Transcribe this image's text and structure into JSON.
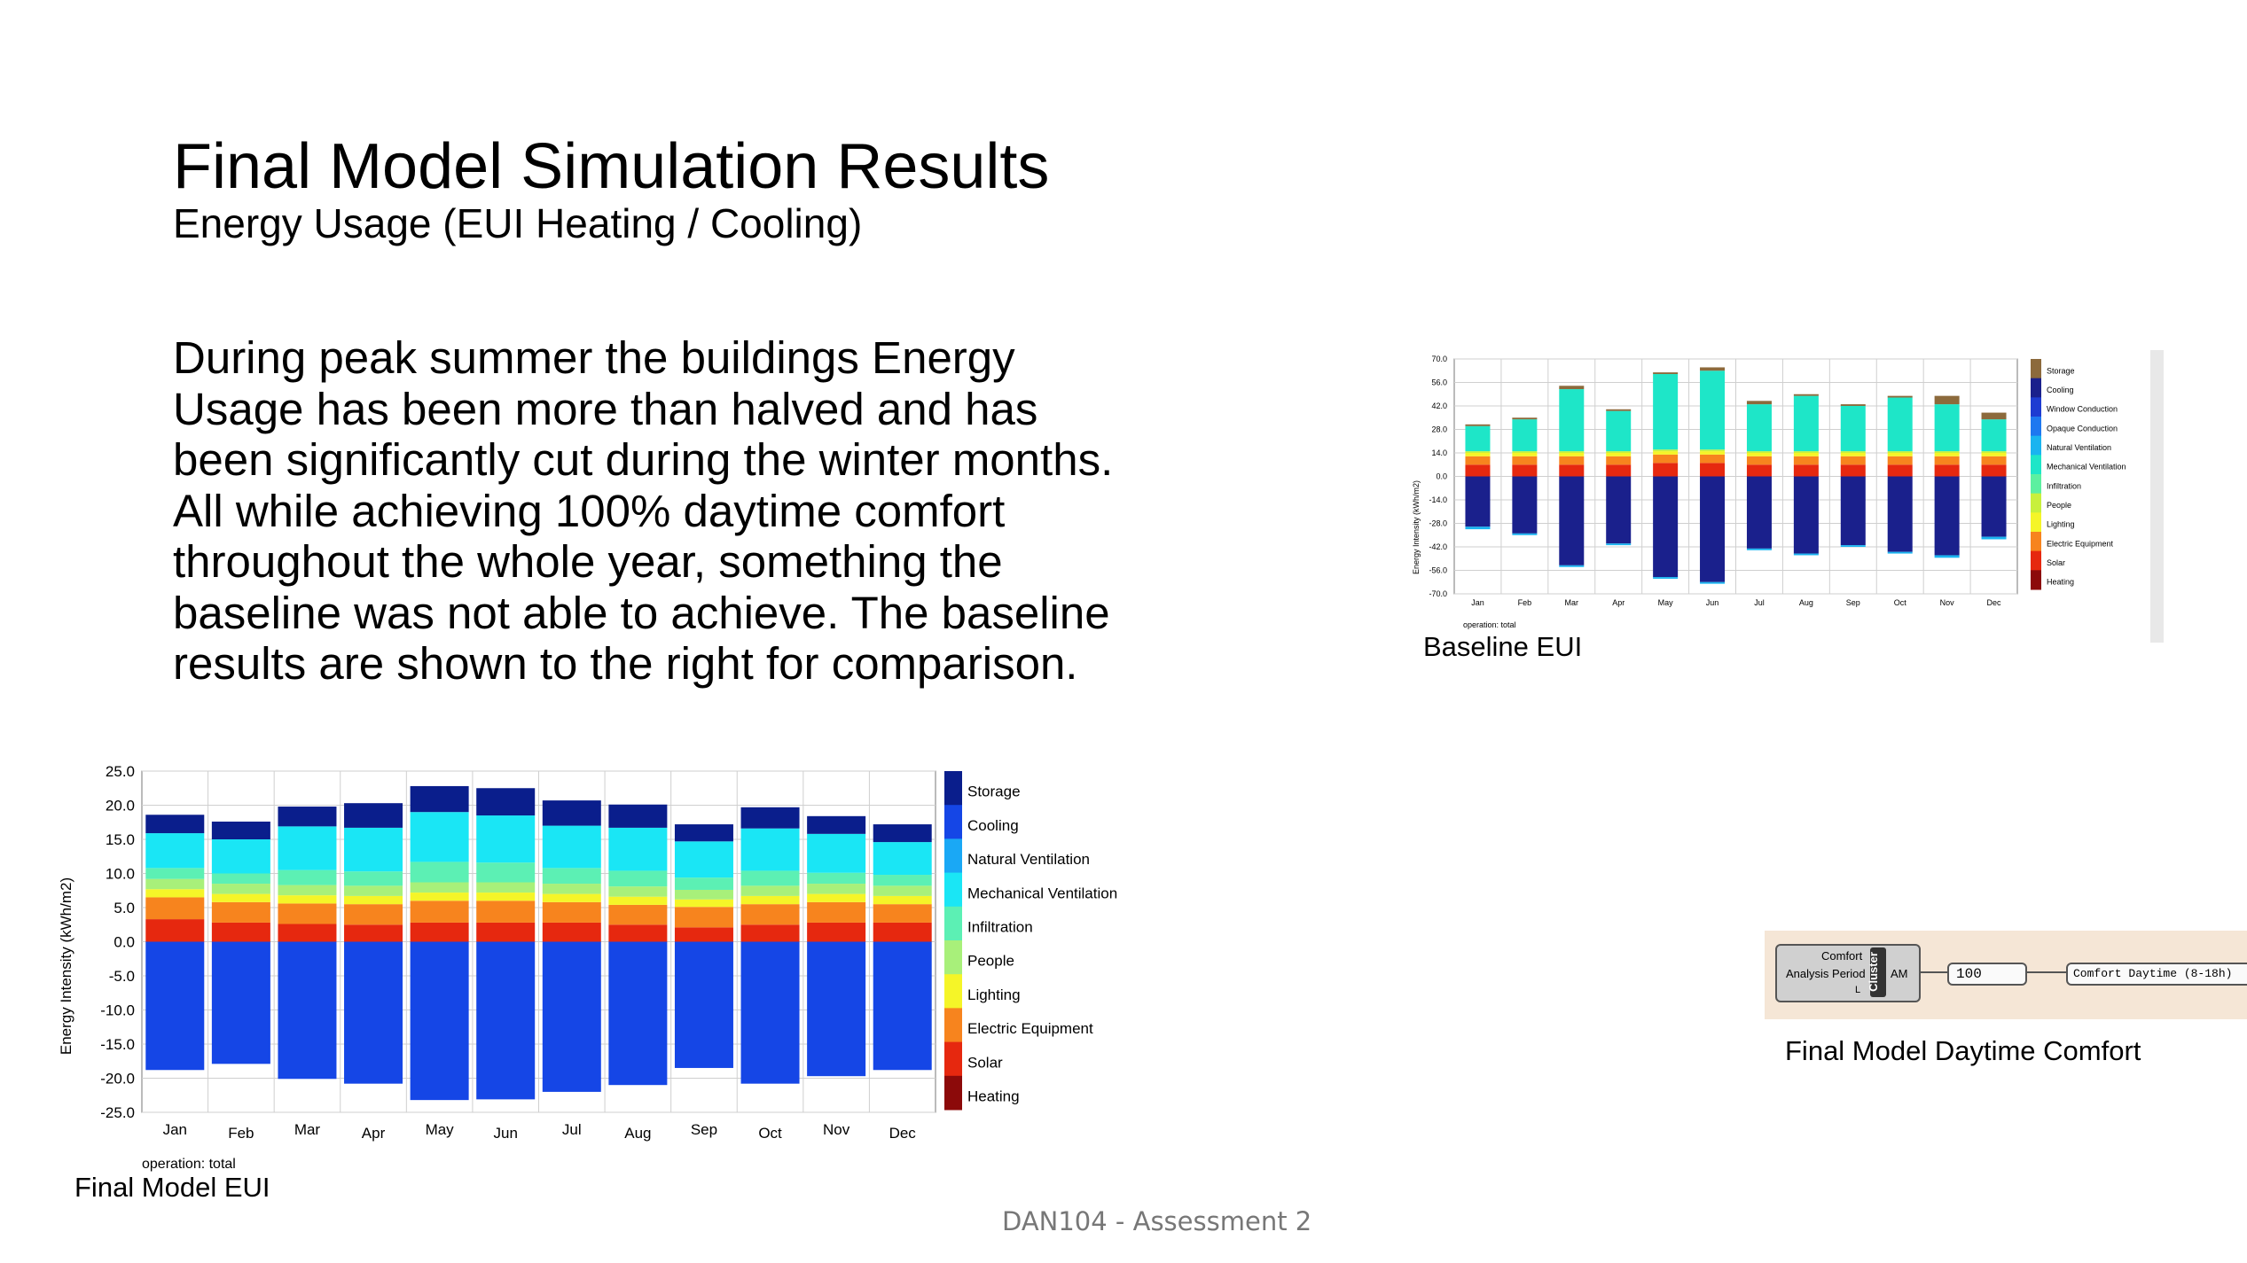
{
  "slide": {
    "title": "Final Model Simulation Results",
    "subtitle": "Energy Usage (EUI Heating / Cooling)",
    "body_lines": [
      "During peak summer the buildings Energy",
      "Usage has been more than halved and has",
      "been significantly cut during the winter months.",
      "All while achieving 100% daytime comfort",
      "throughout the whole year, something the",
      "baseline was not able to achieve. The baseline",
      "results are shown to the right for comparison."
    ],
    "baseline_label": "Baseline EUI",
    "final_label": "Final Model EUI",
    "comfort_label": "Final Model Daytime Comfort",
    "footer": "DAN104 - Assessment 2"
  },
  "grasshopper": {
    "component_title": "Comfort",
    "input_label": "Analysis Period",
    "cluster_label": "Cluster",
    "output_label": "AM",
    "small_label": "L",
    "value": "100",
    "panel_text": "Comfort Daytime (8-18h)"
  },
  "chart_data": [
    {
      "id": "final",
      "type": "bar",
      "stacked": true,
      "title": "",
      "ylabel": "Energy Intensity (kWh/m2)",
      "note": "operation: total",
      "ylim": [
        -25,
        25
      ],
      "yticks": [
        25,
        20,
        15,
        10,
        5,
        0,
        -5,
        -10,
        -15,
        -20,
        -25
      ],
      "ytick_labels": [
        "25.0",
        "20.0",
        "15.0",
        "10.0",
        "5.0",
        "0.0",
        "-5.0",
        "-10.0",
        "-15.0",
        "-20.0",
        "-25.0"
      ],
      "categories": [
        "Jan",
        "Feb",
        "Mar",
        "Apr",
        "May",
        "Jun",
        "Jul",
        "Aug",
        "Sep",
        "Oct",
        "Nov",
        "Dec"
      ],
      "legend": [
        {
          "name": "Storage",
          "color": "#0a1e8c"
        },
        {
          "name": "Cooling",
          "color": "#1546e6"
        },
        {
          "name": "Natural Ventilation",
          "color": "#1aa8f5"
        },
        {
          "name": "Mechanical Ventilation",
          "color": "#1ae6f5"
        },
        {
          "name": "Infiltration",
          "color": "#5cf0b4"
        },
        {
          "name": "People",
          "color": "#a8f07a"
        },
        {
          "name": "Lighting",
          "color": "#f5f528"
        },
        {
          "name": "Electric Equipment",
          "color": "#f7841e"
        },
        {
          "name": "Solar",
          "color": "#e6280f"
        },
        {
          "name": "Heating",
          "color": "#8c0a0a"
        }
      ],
      "series": [
        {
          "name": "Solar",
          "color": "#e6280f",
          "values": [
            3.3,
            2.8,
            2.6,
            2.5,
            2.8,
            2.8,
            2.8,
            2.5,
            2.1,
            2.5,
            2.8,
            2.8
          ]
        },
        {
          "name": "Electric Equipment",
          "color": "#f7841e",
          "values": [
            3.2,
            3.0,
            3.0,
            3.0,
            3.2,
            3.2,
            3.0,
            2.9,
            3.0,
            3.0,
            3.0,
            2.7
          ]
        },
        {
          "name": "Lighting",
          "color": "#f5f528",
          "values": [
            1.2,
            1.2,
            1.2,
            1.2,
            1.2,
            1.2,
            1.2,
            1.2,
            1.1,
            1.2,
            1.2,
            1.2
          ]
        },
        {
          "name": "People",
          "color": "#a8f07a",
          "values": [
            1.5,
            1.5,
            1.5,
            1.5,
            1.5,
            1.5,
            1.5,
            1.5,
            1.4,
            1.5,
            1.5,
            1.5
          ]
        },
        {
          "name": "Infiltration",
          "color": "#5cf0b4",
          "values": [
            1.6,
            1.5,
            2.2,
            2.1,
            3.0,
            2.9,
            2.3,
            2.3,
            1.8,
            2.2,
            1.6,
            1.6
          ]
        },
        {
          "name": "Mechanical Ventilation",
          "color": "#1ae6f5",
          "values": [
            5.1,
            5.0,
            6.4,
            6.4,
            7.3,
            6.9,
            6.2,
            6.3,
            5.3,
            6.2,
            5.7,
            4.8
          ]
        },
        {
          "name": "Storage",
          "color": "#0a1e8c",
          "values": [
            2.7,
            2.6,
            2.9,
            3.6,
            3.8,
            4.0,
            3.7,
            3.4,
            2.5,
            3.1,
            2.6,
            2.6
          ]
        },
        {
          "name": "Cooling",
          "color": "#1546e6",
          "values": [
            -18.8,
            -17.9,
            -20.1,
            -20.8,
            -23.2,
            -23.1,
            -22.0,
            -21.0,
            -18.5,
            -20.8,
            -19.7,
            -18.8
          ]
        }
      ]
    },
    {
      "id": "baseline",
      "type": "bar",
      "stacked": true,
      "title": "",
      "ylabel": "Energy Intensity (kWh/m2)",
      "note": "operation: total",
      "ylim": [
        -70,
        70
      ],
      "yticks": [
        70,
        56,
        42,
        28,
        14,
        0,
        -14,
        -28,
        -42,
        -56,
        -70
      ],
      "ytick_labels": [
        "70.0",
        "56.0",
        "42.0",
        "28.0",
        "14.0",
        "0.0",
        "-14.0",
        "-28.0",
        "-42.0",
        "-56.0",
        "-70.0"
      ],
      "categories": [
        "Jan",
        "Feb",
        "Mar",
        "Apr",
        "May",
        "Jun",
        "Jul",
        "Aug",
        "Sep",
        "Oct",
        "Nov",
        "Dec"
      ],
      "legend": [
        {
          "name": "Storage",
          "color": "#8c6a3c"
        },
        {
          "name": "Cooling",
          "color": "#1a208c"
        },
        {
          "name": "Window Conduction",
          "color": "#1e3cd2"
        },
        {
          "name": "Opaque Conduction",
          "color": "#1e78f0"
        },
        {
          "name": "Natural Ventilation",
          "color": "#1ab4f0"
        },
        {
          "name": "Mechanical Ventilation",
          "color": "#1ee6c8"
        },
        {
          "name": "Infiltration",
          "color": "#5cf0a0"
        },
        {
          "name": "People",
          "color": "#c8f03c"
        },
        {
          "name": "Lighting",
          "color": "#f5f528"
        },
        {
          "name": "Electric Equipment",
          "color": "#f7841e"
        },
        {
          "name": "Solar",
          "color": "#e6280f"
        },
        {
          "name": "Heating",
          "color": "#8c0a0a"
        }
      ],
      "series": [
        {
          "name": "Solar",
          "color": "#e6280f",
          "values": [
            7,
            7,
            7,
            7,
            8,
            8,
            7,
            7,
            7,
            7,
            7,
            7
          ]
        },
        {
          "name": "Electric Equipment",
          "color": "#f7841e",
          "values": [
            5,
            5,
            5,
            5,
            5,
            5,
            5,
            5,
            5,
            5,
            5,
            5
          ]
        },
        {
          "name": "Lighting",
          "color": "#f5f528",
          "values": [
            2,
            2,
            2,
            2,
            2,
            2,
            2,
            2,
            2,
            2,
            2,
            2
          ]
        },
        {
          "name": "People",
          "color": "#c8f03c",
          "values": [
            1,
            1,
            1,
            1,
            1,
            1,
            1,
            1,
            1,
            1,
            1,
            1
          ]
        },
        {
          "name": "Mechanical Ventilation",
          "color": "#1ee6c8",
          "values": [
            15,
            19,
            37,
            24,
            45,
            47,
            28,
            33,
            27,
            32,
            28,
            19
          ]
        },
        {
          "name": "Storage",
          "color": "#8c6a3c",
          "values": [
            1,
            1,
            2,
            1,
            1,
            2,
            2,
            1,
            1,
            1,
            5,
            4
          ]
        },
        {
          "name": "Cooling",
          "color": "#1a208c",
          "values": [
            -30,
            -34,
            -53,
            -40,
            -60,
            -63,
            -43,
            -46,
            -41,
            -45,
            -47,
            -36
          ]
        },
        {
          "name": "Natural Ventilation",
          "color": "#1ab4f0",
          "values": [
            -1.5,
            -1,
            -1,
            -1,
            -1,
            -1,
            -1,
            -1,
            -1,
            -1,
            -1.5,
            -1.5
          ]
        }
      ]
    }
  ]
}
